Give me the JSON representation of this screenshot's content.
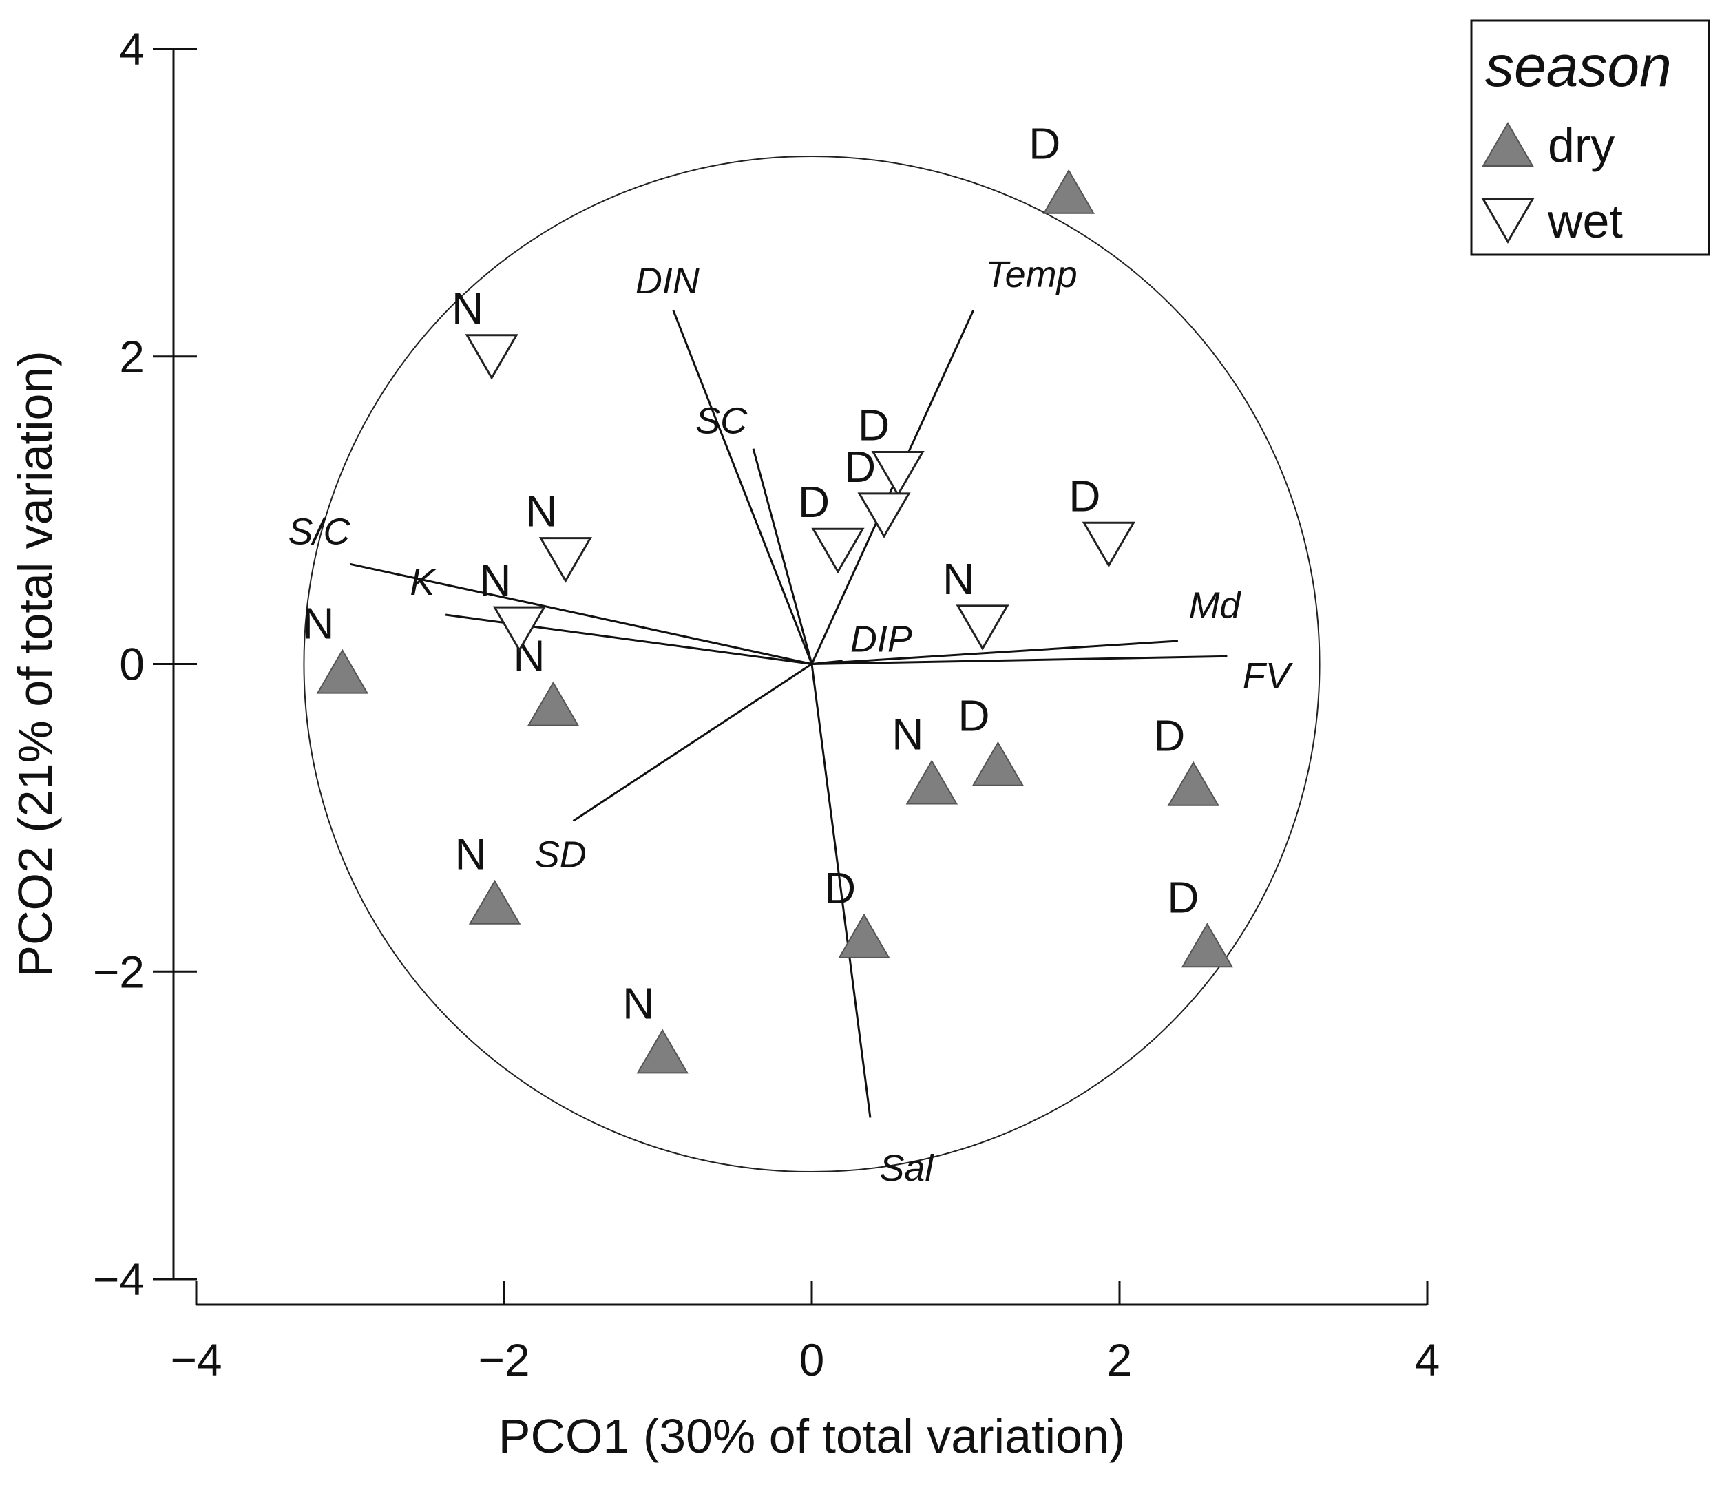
{
  "chart_data": {
    "type": "scatter",
    "xlabel": "PCO1 (30% of total variation)",
    "ylabel": "PCO2 (21% of total variation)",
    "xlim": [
      -4,
      4
    ],
    "ylim": [
      -4,
      4
    ],
    "xticks": [
      -4,
      -2,
      0,
      2,
      4
    ],
    "yticks": [
      -4,
      -2,
      0,
      2,
      4
    ],
    "x_tick_labels": [
      "−4",
      "−2",
      "0",
      "2",
      "4"
    ],
    "y_tick_labels": [
      "−4",
      "−2",
      "0",
      "2",
      "4"
    ],
    "correlation_circle": true,
    "grid": false,
    "legend": {
      "title": "season",
      "position": "top-right",
      "entries": [
        {
          "label": "dry",
          "marker": "triangle-up",
          "fill": "#7f7f7f"
        },
        {
          "label": "wet",
          "marker": "triangle-down",
          "fill": "#ffffff"
        }
      ]
    },
    "series": [
      {
        "name": "dry",
        "marker": "triangle-up",
        "color": "#7f7f7f",
        "points": [
          {
            "x": 1.67,
            "y": 3.07,
            "label": "D"
          },
          {
            "x": -3.05,
            "y": -0.05,
            "label": "N"
          },
          {
            "x": -1.68,
            "y": -0.26,
            "label": "N"
          },
          {
            "x": 0.78,
            "y": -0.77,
            "label": "N"
          },
          {
            "x": 1.21,
            "y": -0.65,
            "label": "D"
          },
          {
            "x": 2.48,
            "y": -0.78,
            "label": "D"
          },
          {
            "x": -2.06,
            "y": -1.55,
            "label": "N"
          },
          {
            "x": 0.34,
            "y": -1.77,
            "label": "D"
          },
          {
            "x": 2.57,
            "y": -1.83,
            "label": "D"
          },
          {
            "x": -0.97,
            "y": -2.52,
            "label": "N"
          }
        ]
      },
      {
        "name": "wet",
        "marker": "triangle-down",
        "color": "#ffffff",
        "points": [
          {
            "x": -2.08,
            "y": 2.0,
            "label": "N"
          },
          {
            "x": 0.56,
            "y": 1.24,
            "label": "D"
          },
          {
            "x": 0.47,
            "y": 0.97,
            "label": "D"
          },
          {
            "x": 0.17,
            "y": 0.74,
            "label": "D"
          },
          {
            "x": 1.93,
            "y": 0.78,
            "label": "D"
          },
          {
            "x": -1.6,
            "y": 0.68,
            "label": "N"
          },
          {
            "x": -1.9,
            "y": 0.23,
            "label": "N"
          },
          {
            "x": 1.11,
            "y": 0.24,
            "label": "N"
          }
        ]
      }
    ],
    "vectors": [
      {
        "name": "DIN",
        "x": -0.9,
        "y": 2.3
      },
      {
        "name": "Temp",
        "x": 1.05,
        "y": 2.3
      },
      {
        "name": "SC",
        "x": -0.38,
        "y": 1.4
      },
      {
        "name": "S/C",
        "x": -3.0,
        "y": 0.65
      },
      {
        "name": "K",
        "x": -2.38,
        "y": 0.32
      },
      {
        "name": "DIP",
        "x": 0.2,
        "y": 0.02
      },
      {
        "name": "Md",
        "x": 2.38,
        "y": 0.15
      },
      {
        "name": "FV",
        "x": 2.7,
        "y": 0.05
      },
      {
        "name": "SD",
        "x": -1.55,
        "y": -1.02
      },
      {
        "name": "Sal",
        "x": 0.38,
        "y": -2.95
      }
    ]
  }
}
